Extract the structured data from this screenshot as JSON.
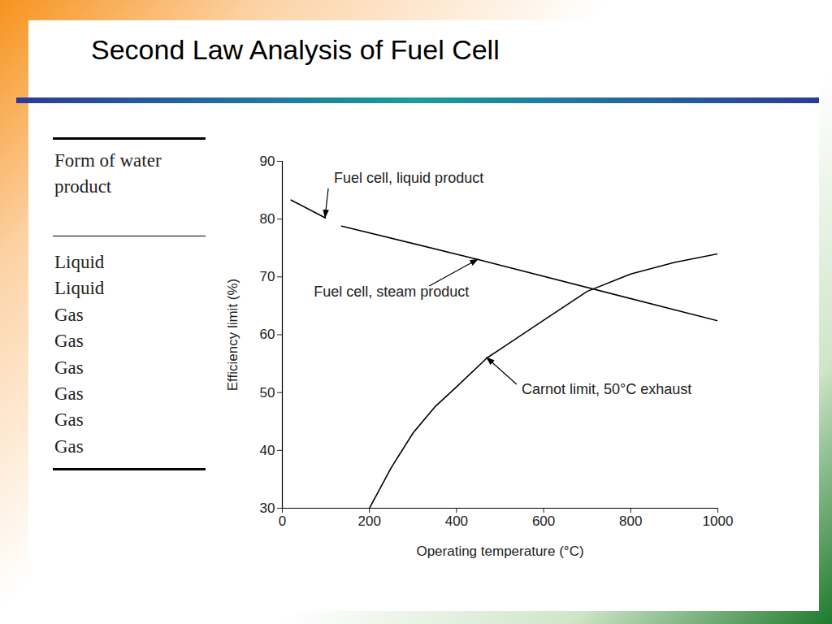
{
  "slide": {
    "title": "Second Law Analysis of Fuel Cell",
    "table": {
      "header": "Form of water product",
      "rows": [
        "Liquid",
        "Liquid",
        "Gas",
        "Gas",
        "Gas",
        "Gas",
        "Gas",
        "Gas"
      ]
    }
  },
  "chart_data": {
    "type": "line",
    "xlabel": "Operating temperature (°C)",
    "ylabel": "Efficiency limit (%)",
    "xlim": [
      0,
      1000
    ],
    "xticks": [
      0,
      200,
      400,
      600,
      800,
      1000
    ],
    "ylim": [
      30,
      90
    ],
    "yticks": [
      30,
      40,
      50,
      60,
      70,
      80,
      90
    ],
    "grid": false,
    "series": [
      {
        "name": "Fuel cell, liquid product",
        "color": "#000000",
        "x": [
          20,
          99
        ],
        "values": [
          83.3,
          80.2
        ]
      },
      {
        "name": "Fuel cell, steam product",
        "color": "#000000",
        "x": [
          136,
          450,
          1000
        ],
        "values": [
          78.8,
          73,
          62.4
        ]
      },
      {
        "name": "Carnot limit, 50°C exhaust",
        "color": "#000000",
        "x": [
          200,
          250,
          300,
          350,
          400,
          470,
          500,
          600,
          700,
          800,
          900,
          1000
        ],
        "values": [
          30,
          37,
          43,
          47.5,
          51,
          56,
          57.5,
          62.5,
          67.5,
          70.5,
          72.5,
          74
        ]
      }
    ]
  }
}
